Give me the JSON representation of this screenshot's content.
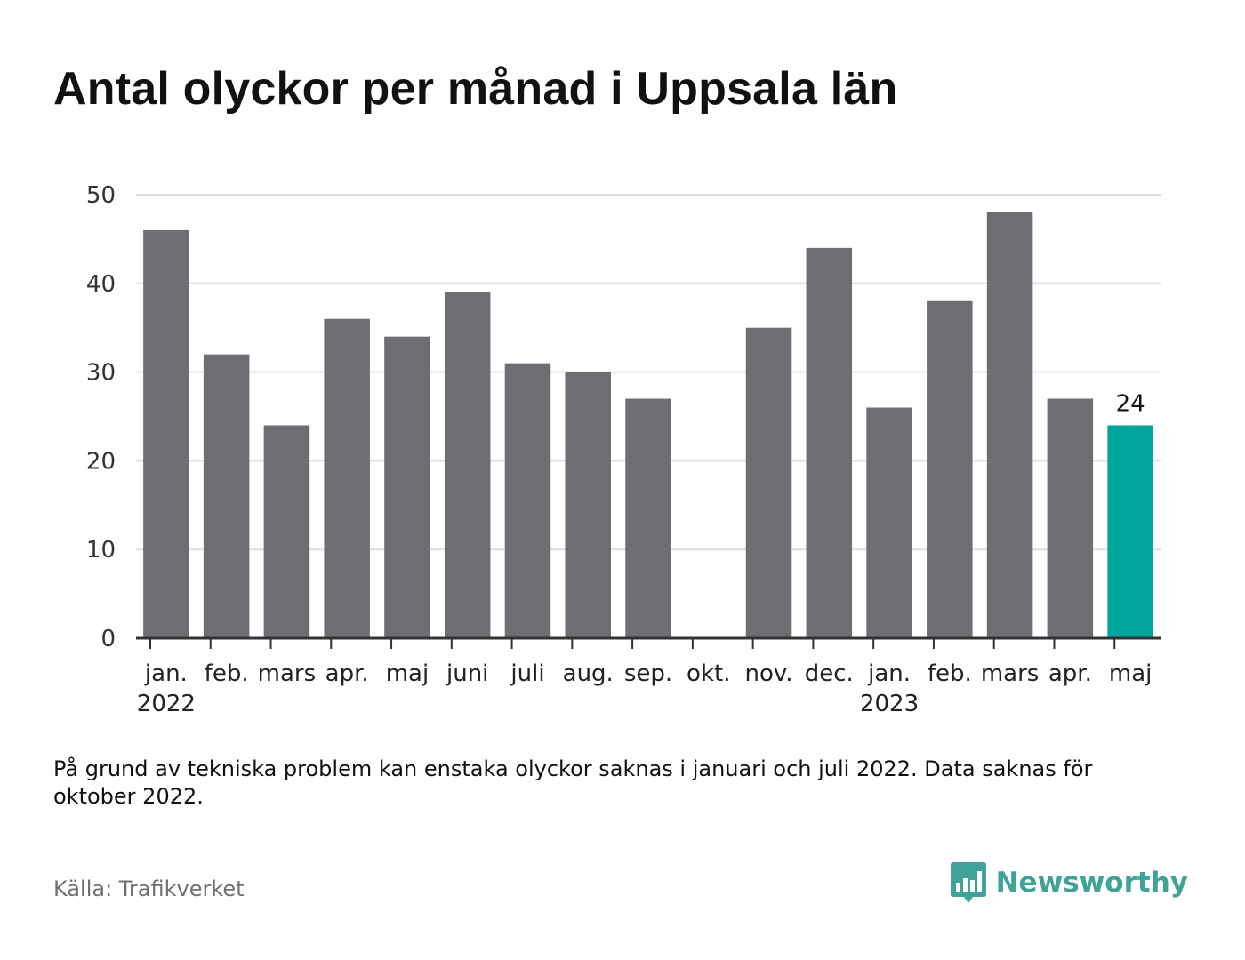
{
  "title": "Antal olyckor per månad i Uppsala län",
  "footnote": "På grund av tekniska problem kan enstaka olyckor saknas i januari och juli 2022. Data saknas för oktober 2022.",
  "source": "Källa: Trafikverket",
  "brand": {
    "name": "Newsworthy",
    "icon": "newsworthy-logo-icon",
    "color": "#3fa39a"
  },
  "colors": {
    "bar": "#6e6d73",
    "highlight": "#00a69c",
    "grid": "#dddddd",
    "axis": "#333333"
  },
  "chart_data": {
    "type": "bar",
    "categories": [
      "jan.",
      "feb.",
      "mars",
      "apr.",
      "maj",
      "juni",
      "juli",
      "aug.",
      "sep.",
      "okt.",
      "nov.",
      "dec.",
      "jan.",
      "feb.",
      "mars",
      "apr.",
      "maj"
    ],
    "year_labels": [
      {
        "index": 0,
        "label": "2022"
      },
      {
        "index": 12,
        "label": "2023"
      }
    ],
    "values": [
      46,
      32,
      24,
      36,
      34,
      39,
      31,
      30,
      27,
      null,
      35,
      44,
      26,
      38,
      48,
      27,
      24
    ],
    "highlight_index": 16,
    "highlight_label": "24",
    "yticks": [
      0,
      10,
      20,
      30,
      40,
      50
    ],
    "ylim": [
      0,
      50
    ],
    "grid": true,
    "legend": false
  }
}
